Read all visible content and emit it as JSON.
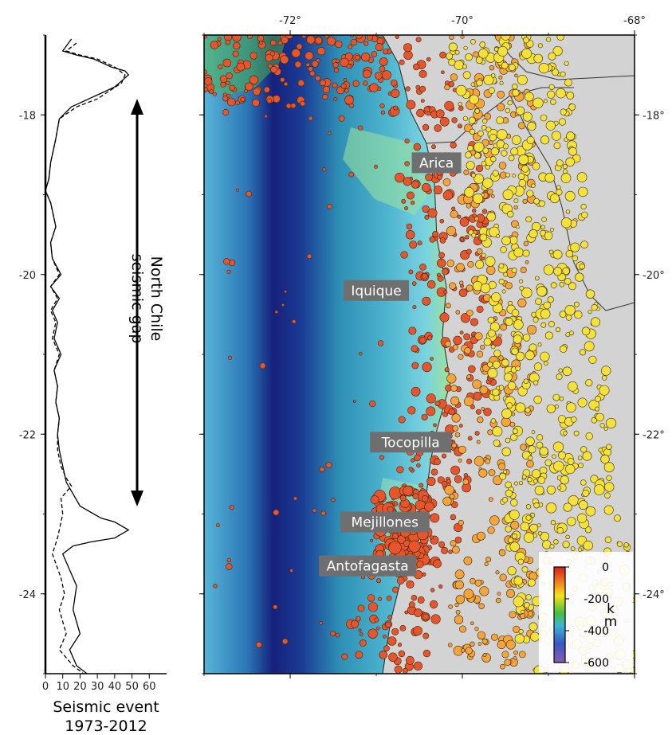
{
  "chart_data": [
    {
      "type": "line",
      "xlabel_line1": "Seismic event",
      "xlabel_line2": "1973-2012",
      "x_ticks": [
        "0",
        "10",
        "20",
        "30",
        "40",
        "50",
        "60"
      ],
      "y_ticks": [
        "-18",
        "-20",
        "-22",
        "-24"
      ],
      "xlim": [
        0,
        70
      ],
      "ylim": [
        -25,
        -17
      ],
      "series": [
        {
          "style": "solid",
          "points": [
            [
              15,
              -17.05
            ],
            [
              10,
              -17.2
            ],
            [
              18,
              -17.25
            ],
            [
              28,
              -17.3
            ],
            [
              38,
              -17.4
            ],
            [
              46,
              -17.45
            ],
            [
              48,
              -17.5
            ],
            [
              40,
              -17.65
            ],
            [
              25,
              -17.8
            ],
            [
              15,
              -17.9
            ],
            [
              8,
              -18.05
            ],
            [
              6,
              -18.3
            ],
            [
              3,
              -18.6
            ],
            [
              2,
              -18.8
            ],
            [
              0,
              -18.95
            ],
            [
              3,
              -19.1
            ],
            [
              6,
              -19.4
            ],
            [
              3,
              -19.6
            ],
            [
              4,
              -19.8
            ],
            [
              9,
              -20
            ],
            [
              3,
              -20.15
            ],
            [
              8,
              -20.3
            ],
            [
              4,
              -20.45
            ],
            [
              7,
              -20.6
            ],
            [
              5,
              -20.8
            ],
            [
              9,
              -21
            ],
            [
              5,
              -21.2
            ],
            [
              7,
              -21.4
            ],
            [
              6,
              -21.6
            ],
            [
              8,
              -21.8
            ],
            [
              7,
              -22
            ],
            [
              8,
              -22.2
            ],
            [
              10,
              -22.4
            ],
            [
              12,
              -22.6
            ],
            [
              20,
              -22.9
            ],
            [
              32,
              -23.05
            ],
            [
              40,
              -23.1
            ],
            [
              48,
              -23.2
            ],
            [
              40,
              -23.3
            ],
            [
              26,
              -23.35
            ],
            [
              16,
              -23.4
            ],
            [
              10,
              -23.5
            ],
            [
              14,
              -23.7
            ],
            [
              18,
              -23.9
            ],
            [
              16,
              -24.2
            ],
            [
              20,
              -24.5
            ],
            [
              14,
              -24.7
            ],
            [
              18,
              -24.9
            ],
            [
              24,
              -25
            ]
          ]
        },
        {
          "style": "dashed",
          "points": [
            [
              18,
              -17.1
            ],
            [
              12,
              -17.2
            ],
            [
              20,
              -17.25
            ],
            [
              30,
              -17.3
            ],
            [
              40,
              -17.4
            ],
            [
              46,
              -17.5
            ],
            [
              44,
              -17.6
            ],
            [
              30,
              -17.8
            ],
            [
              18,
              -17.9
            ],
            [
              8,
              -18.05
            ],
            [
              6,
              -18.3
            ],
            [
              3,
              -18.6
            ],
            [
              2,
              -18.8
            ],
            [
              0,
              -18.95
            ],
            [
              3,
              -19.1
            ],
            [
              6,
              -19.4
            ],
            [
              3,
              -19.6
            ],
            [
              4,
              -19.8
            ],
            [
              8,
              -20
            ],
            [
              3,
              -20.15
            ],
            [
              7,
              -20.3
            ],
            [
              3,
              -20.45
            ],
            [
              6,
              -20.6
            ],
            [
              4,
              -20.8
            ],
            [
              8,
              -21
            ],
            [
              5,
              -21.2
            ],
            [
              7,
              -21.4
            ],
            [
              6,
              -21.6
            ],
            [
              8,
              -21.8
            ],
            [
              7,
              -22
            ],
            [
              7,
              -22.2
            ],
            [
              9,
              -22.4
            ],
            [
              12,
              -22.55
            ],
            [
              15,
              -22.65
            ],
            [
              9,
              -22.8
            ],
            [
              10,
              -23
            ],
            [
              7,
              -23.3
            ],
            [
              4,
              -23.5
            ],
            [
              9,
              -23.8
            ],
            [
              11,
              -24
            ],
            [
              8,
              -24.2
            ],
            [
              12,
              -24.5
            ],
            [
              8,
              -24.7
            ],
            [
              16,
              -24.9
            ],
            [
              22,
              -25
            ]
          ]
        }
      ]
    },
    {
      "type": "scatter",
      "x_ticks": [
        "-72°",
        "-70°",
        "-68°"
      ],
      "y_ticks_right": [
        "-18°",
        "-20°",
        "-22°",
        "-24°"
      ],
      "xlim": [
        -73,
        -68
      ],
      "ylim": [
        -25,
        -17
      ],
      "colorbar": {
        "ticks": [
          "0",
          "-200",
          "-400",
          "-600"
        ],
        "unit": "k\nm"
      },
      "gap_annotation": "North Chile\nseismic gap",
      "places": [
        {
          "name": "Arica",
          "lon": -70.3,
          "lat": -18.6
        },
        {
          "name": "Iquique",
          "lon": -71.0,
          "lat": -20.2
        },
        {
          "name": "Tocopilla",
          "lon": -70.6,
          "lat": -22.1
        },
        {
          "name": "Mejillones",
          "lon": -70.9,
          "lat": -23.1
        },
        {
          "name": "Antofagasta",
          "lon": -71.1,
          "lat": -23.65
        }
      ]
    }
  ],
  "colors": {
    "land": "#d3d3d3",
    "deep_ocean": "#16207a",
    "mid_ocean": "#2e8fb5",
    "shallow_ocean": "#79d3e0",
    "shelf": "#9ee39a",
    "shallow_event": "#e8542b",
    "mid_event": "#f7a43a",
    "deep_event": "#f4e23a",
    "label_box": "#6f6f6f"
  }
}
